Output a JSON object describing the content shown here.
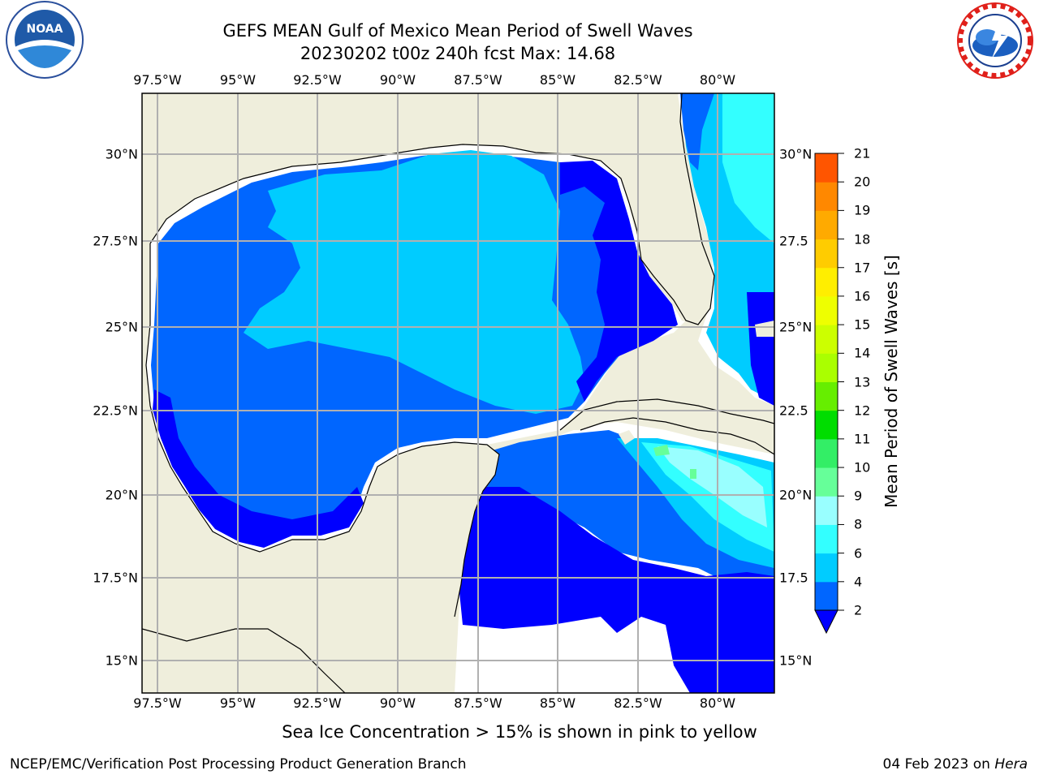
{
  "header": {
    "title_line1": "GEFS MEAN Gulf of Mexico Mean Period of Swell Waves",
    "title_line2": "20230202 t00z 240h fcst   Max: 14.68"
  },
  "logos": {
    "left": "noaa-logo",
    "right": "national-weather-service-logo"
  },
  "map": {
    "lon_ticks": [
      "97.5°W",
      "95°W",
      "92.5°W",
      "90°W",
      "87.5°W",
      "85°W",
      "82.5°W",
      "80°W"
    ],
    "lat_ticks_left": [
      "30°N",
      "27.5°N",
      "25°N",
      "22.5°N",
      "20°N",
      "17.5°N",
      "15°N"
    ],
    "lat_ticks_right": [
      "30°N",
      "27.5",
      "25°N",
      "22.5",
      "20°N",
      "17.5",
      "15°N"
    ],
    "lon_range": [
      -98,
      -78.2
    ],
    "lat_range": [
      14,
      31.9
    ],
    "land_color": "#efeedc",
    "ocean_color": "#ffffff"
  },
  "colorbar": {
    "title": "Mean Period of Swell Waves [s]",
    "levels": [
      "2",
      "4",
      "6",
      "8",
      "9",
      "10",
      "11",
      "12",
      "13",
      "14",
      "15",
      "16",
      "17",
      "18",
      "19",
      "20",
      "21"
    ],
    "colors": [
      "#0066ff",
      "#00ccff",
      "#33ffff",
      "#99ffff",
      "#66ff99",
      "#33ee66",
      "#00dd00",
      "#66ee00",
      "#aaff00",
      "#ccff00",
      "#eeff00",
      "#ffee00",
      "#ffcc00",
      "#ffaa00",
      "#ff8800",
      "#ff5500",
      "#ff2200",
      "#ff0000"
    ],
    "under_color": "#0000ff"
  },
  "footer": {
    "note": "Sea Ice Concentration > 15% is shown in pink to yellow",
    "credit_left": "NCEP/EMC/Verification Post Processing Product Generation Branch",
    "date": "04 Feb 2023",
    "on": "on",
    "machine": "Hera"
  }
}
